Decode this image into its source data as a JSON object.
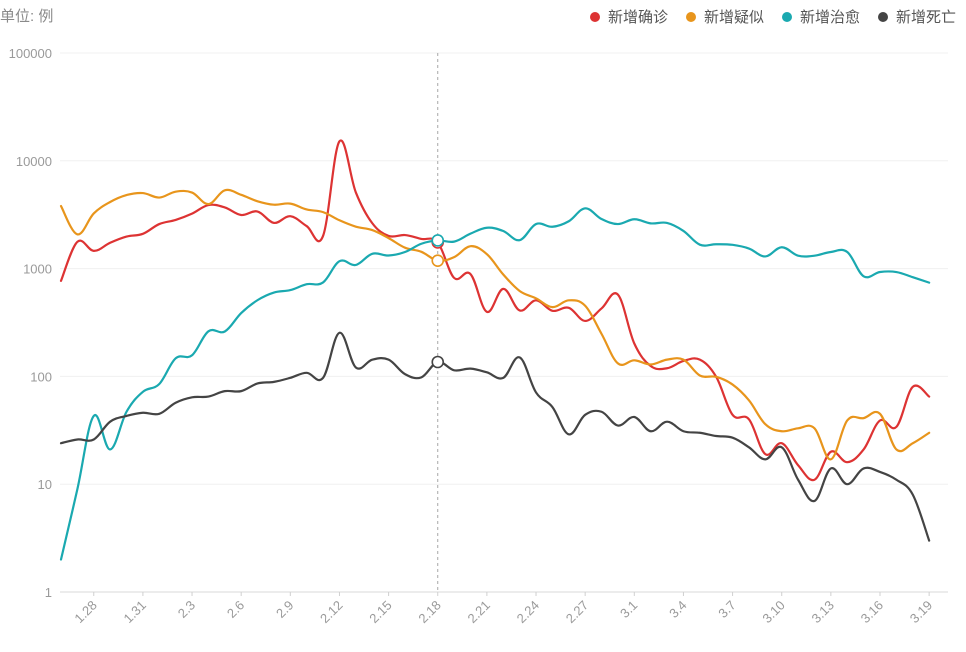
{
  "unit_label": "单位: 例",
  "chart_data": {
    "type": "line",
    "yscale": "log",
    "ylim": [
      1,
      100000
    ],
    "yticks": [
      1,
      10,
      100,
      1000,
      10000,
      100000
    ],
    "ytick_labels": [
      "1",
      "10",
      "100",
      "1000",
      "10000",
      "100000"
    ],
    "x_labels": [
      "1.28",
      "1.31",
      "2.3",
      "2.6",
      "2.9",
      "2.12",
      "2.15",
      "2.18",
      "2.21",
      "2.24",
      "2.27",
      "3.1",
      "3.4",
      "3.7",
      "3.10",
      "3.13",
      "3.16",
      "3.19"
    ],
    "x_range": [
      "1.26",
      "3.19"
    ],
    "highlight_date": "2.18",
    "series": [
      {
        "name": "新增确诊",
        "color": "#dd3333",
        "points": [
          [
            "1.26",
            770
          ],
          [
            "1.27",
            1770
          ],
          [
            "1.28",
            1460
          ],
          [
            "1.29",
            1737
          ],
          [
            "1.30",
            1982
          ],
          [
            "1.31",
            2102
          ],
          [
            "2.1",
            2590
          ],
          [
            "2.2",
            2829
          ],
          [
            "2.3",
            3235
          ],
          [
            "2.4",
            3887
          ],
          [
            "2.5",
            3694
          ],
          [
            "2.6",
            3143
          ],
          [
            "2.7",
            3385
          ],
          [
            "2.8",
            2656
          ],
          [
            "2.9",
            3062
          ],
          [
            "2.10",
            2478
          ],
          [
            "2.11",
            2015
          ],
          [
            "2.12",
            15152
          ],
          [
            "2.13",
            5090
          ],
          [
            "2.14",
            2641
          ],
          [
            "2.15",
            2009
          ],
          [
            "2.16",
            2048
          ],
          [
            "2.17",
            1886
          ],
          [
            "2.18",
            1749
          ],
          [
            "2.19",
            820
          ],
          [
            "2.20",
            889
          ],
          [
            "2.21",
            397
          ],
          [
            "2.22",
            648
          ],
          [
            "2.23",
            409
          ],
          [
            "2.24",
            508
          ],
          [
            "2.25",
            406
          ],
          [
            "2.26",
            433
          ],
          [
            "2.27",
            327
          ],
          [
            "2.28",
            427
          ],
          [
            "2.29",
            573
          ],
          [
            "3.1",
            202
          ],
          [
            "3.2",
            125
          ],
          [
            "3.3",
            119
          ],
          [
            "3.4",
            139
          ],
          [
            "3.5",
            143
          ],
          [
            "3.6",
            99
          ],
          [
            "3.7",
            44
          ],
          [
            "3.8",
            40
          ],
          [
            "3.9",
            19
          ],
          [
            "3.10",
            24
          ],
          [
            "3.11",
            15
          ],
          [
            "3.12",
            11
          ],
          [
            "3.13",
            20
          ],
          [
            "3.14",
            16
          ],
          [
            "3.15",
            21
          ],
          [
            "3.16",
            39
          ],
          [
            "3.17",
            34
          ],
          [
            "3.18",
            80
          ],
          [
            "3.19",
            65
          ]
        ]
      },
      {
        "name": "新增疑似",
        "color": "#e8951c",
        "points": [
          [
            "1.26",
            3806
          ],
          [
            "1.27",
            2077
          ],
          [
            "1.28",
            3248
          ],
          [
            "1.29",
            4148
          ],
          [
            "1.30",
            4812
          ],
          [
            "1.31",
            5019
          ],
          [
            "2.1",
            4562
          ],
          [
            "2.2",
            5173
          ],
          [
            "2.3",
            5072
          ],
          [
            "2.4",
            3971
          ],
          [
            "2.5",
            5328
          ],
          [
            "2.6",
            4833
          ],
          [
            "2.7",
            4214
          ],
          [
            "2.8",
            3916
          ],
          [
            "2.9",
            4008
          ],
          [
            "2.10",
            3536
          ],
          [
            "2.11",
            3342
          ],
          [
            "2.12",
            2807
          ],
          [
            "2.13",
            2450
          ],
          [
            "2.14",
            2277
          ],
          [
            "2.15",
            1918
          ],
          [
            "2.16",
            1563
          ],
          [
            "2.17",
            1432
          ],
          [
            "2.18",
            1185
          ],
          [
            "2.19",
            1277
          ],
          [
            "2.20",
            1614
          ],
          [
            "2.21",
            1361
          ],
          [
            "2.22",
            882
          ],
          [
            "2.23",
            620
          ],
          [
            "2.24",
            530
          ],
          [
            "2.25",
            439
          ],
          [
            "2.26",
            508
          ],
          [
            "2.27",
            452
          ],
          [
            "2.28",
            248
          ],
          [
            "2.29",
            132
          ],
          [
            "3.1",
            141
          ],
          [
            "3.2",
            129
          ],
          [
            "3.3",
            143
          ],
          [
            "3.4",
            143
          ],
          [
            "3.5",
            102
          ],
          [
            "3.6",
            99
          ],
          [
            "3.7",
            84
          ],
          [
            "3.8",
            60
          ],
          [
            "3.9",
            36
          ],
          [
            "3.10",
            31
          ],
          [
            "3.11",
            33
          ],
          [
            "3.12",
            33
          ],
          [
            "3.13",
            17
          ],
          [
            "3.14",
            39
          ],
          [
            "3.15",
            41
          ],
          [
            "3.16",
            45
          ],
          [
            "3.17",
            21
          ],
          [
            "3.18",
            24
          ],
          [
            "3.19",
            30
          ]
        ]
      },
      {
        "name": "新增治愈",
        "color": "#1aa9b0",
        "points": [
          [
            "1.26",
            2
          ],
          [
            "1.27",
            9
          ],
          [
            "1.28",
            43
          ],
          [
            "1.29",
            21
          ],
          [
            "1.30",
            47
          ],
          [
            "1.31",
            72
          ],
          [
            "2.1",
            85
          ],
          [
            "2.2",
            147
          ],
          [
            "2.3",
            157
          ],
          [
            "2.4",
            262
          ],
          [
            "2.5",
            261
          ],
          [
            "2.6",
            387
          ],
          [
            "2.7",
            510
          ],
          [
            "2.8",
            600
          ],
          [
            "2.9",
            632
          ],
          [
            "2.10",
            716
          ],
          [
            "2.11",
            744
          ],
          [
            "2.12",
            1171
          ],
          [
            "2.13",
            1081
          ],
          [
            "2.14",
            1373
          ],
          [
            "2.15",
            1323
          ],
          [
            "2.16",
            1425
          ],
          [
            "2.17",
            1701
          ],
          [
            "2.18",
            1824
          ],
          [
            "2.19",
            1779
          ],
          [
            "2.20",
            2109
          ],
          [
            "2.21",
            2394
          ],
          [
            "2.22",
            2231
          ],
          [
            "2.23",
            1836
          ],
          [
            "2.24",
            2589
          ],
          [
            "2.25",
            2444
          ],
          [
            "2.26",
            2750
          ],
          [
            "2.27",
            3622
          ],
          [
            "2.28",
            2885
          ],
          [
            "2.29",
            2589
          ],
          [
            "3.1",
            2868
          ],
          [
            "3.2",
            2628
          ],
          [
            "3.3",
            2652
          ],
          [
            "3.4",
            2237
          ],
          [
            "3.5",
            1667
          ],
          [
            "3.6",
            1683
          ],
          [
            "3.7",
            1661
          ],
          [
            "3.8",
            1535
          ],
          [
            "3.9",
            1297
          ],
          [
            "3.10",
            1578
          ],
          [
            "3.11",
            1318
          ],
          [
            "3.12",
            1318
          ],
          [
            "3.13",
            1426
          ],
          [
            "3.14",
            1426
          ],
          [
            "3.15",
            849
          ],
          [
            "3.16",
            930
          ],
          [
            "3.17",
            929
          ],
          [
            "3.18",
            832
          ],
          [
            "3.19",
            741
          ]
        ]
      },
      {
        "name": "新增死亡",
        "color": "#444444",
        "points": [
          [
            "1.26",
            24
          ],
          [
            "1.27",
            26
          ],
          [
            "1.28",
            26
          ],
          [
            "1.29",
            38
          ],
          [
            "1.30",
            43
          ],
          [
            "1.31",
            46
          ],
          [
            "2.1",
            45
          ],
          [
            "2.2",
            57
          ],
          [
            "2.3",
            64
          ],
          [
            "2.4",
            65
          ],
          [
            "2.5",
            73
          ],
          [
            "2.6",
            73
          ],
          [
            "2.7",
            86
          ],
          [
            "2.8",
            89
          ],
          [
            "2.9",
            97
          ],
          [
            "2.10",
            108
          ],
          [
            "2.11",
            97
          ],
          [
            "2.12",
            254
          ],
          [
            "2.13",
            121
          ],
          [
            "2.14",
            143
          ],
          [
            "2.15",
            143
          ],
          [
            "2.16",
            105
          ],
          [
            "2.17",
            98
          ],
          [
            "2.18",
            136
          ],
          [
            "2.19",
            114
          ],
          [
            "2.20",
            118
          ],
          [
            "2.21",
            109
          ],
          [
            "2.22",
            97
          ],
          [
            "2.23",
            150
          ],
          [
            "2.24",
            71
          ],
          [
            "2.25",
            52
          ],
          [
            "2.26",
            29
          ],
          [
            "2.27",
            44
          ],
          [
            "2.28",
            47
          ],
          [
            "2.29",
            35
          ],
          [
            "3.1",
            42
          ],
          [
            "3.2",
            31
          ],
          [
            "3.3",
            38
          ],
          [
            "3.4",
            31
          ],
          [
            "3.5",
            30
          ],
          [
            "3.6",
            28
          ],
          [
            "3.7",
            27
          ],
          [
            "3.8",
            22
          ],
          [
            "3.9",
            17
          ],
          [
            "3.10",
            22
          ],
          [
            "3.11",
            11
          ],
          [
            "3.12",
            7
          ],
          [
            "3.13",
            14
          ],
          [
            "3.14",
            10
          ],
          [
            "3.15",
            14
          ],
          [
            "3.16",
            13
          ],
          [
            "3.17",
            11
          ],
          [
            "3.18",
            8
          ],
          [
            "3.19",
            3
          ]
        ]
      }
    ]
  }
}
